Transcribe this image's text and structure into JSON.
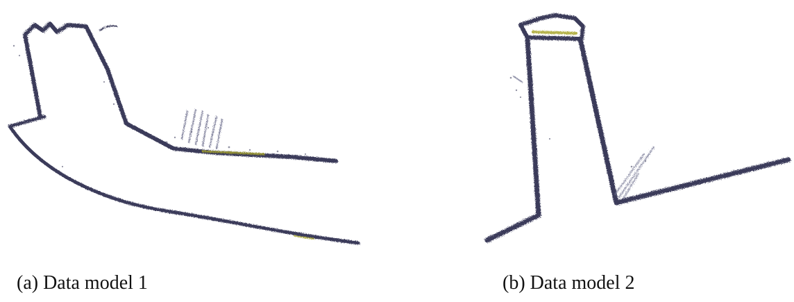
{
  "captions": {
    "a": "(a)   Data model 1",
    "b": "(b) Data model 2"
  },
  "colors": {
    "cloud": "#3a3b5a",
    "highlight": "#a7a52a",
    "scatter": "#6b6d8c"
  }
}
